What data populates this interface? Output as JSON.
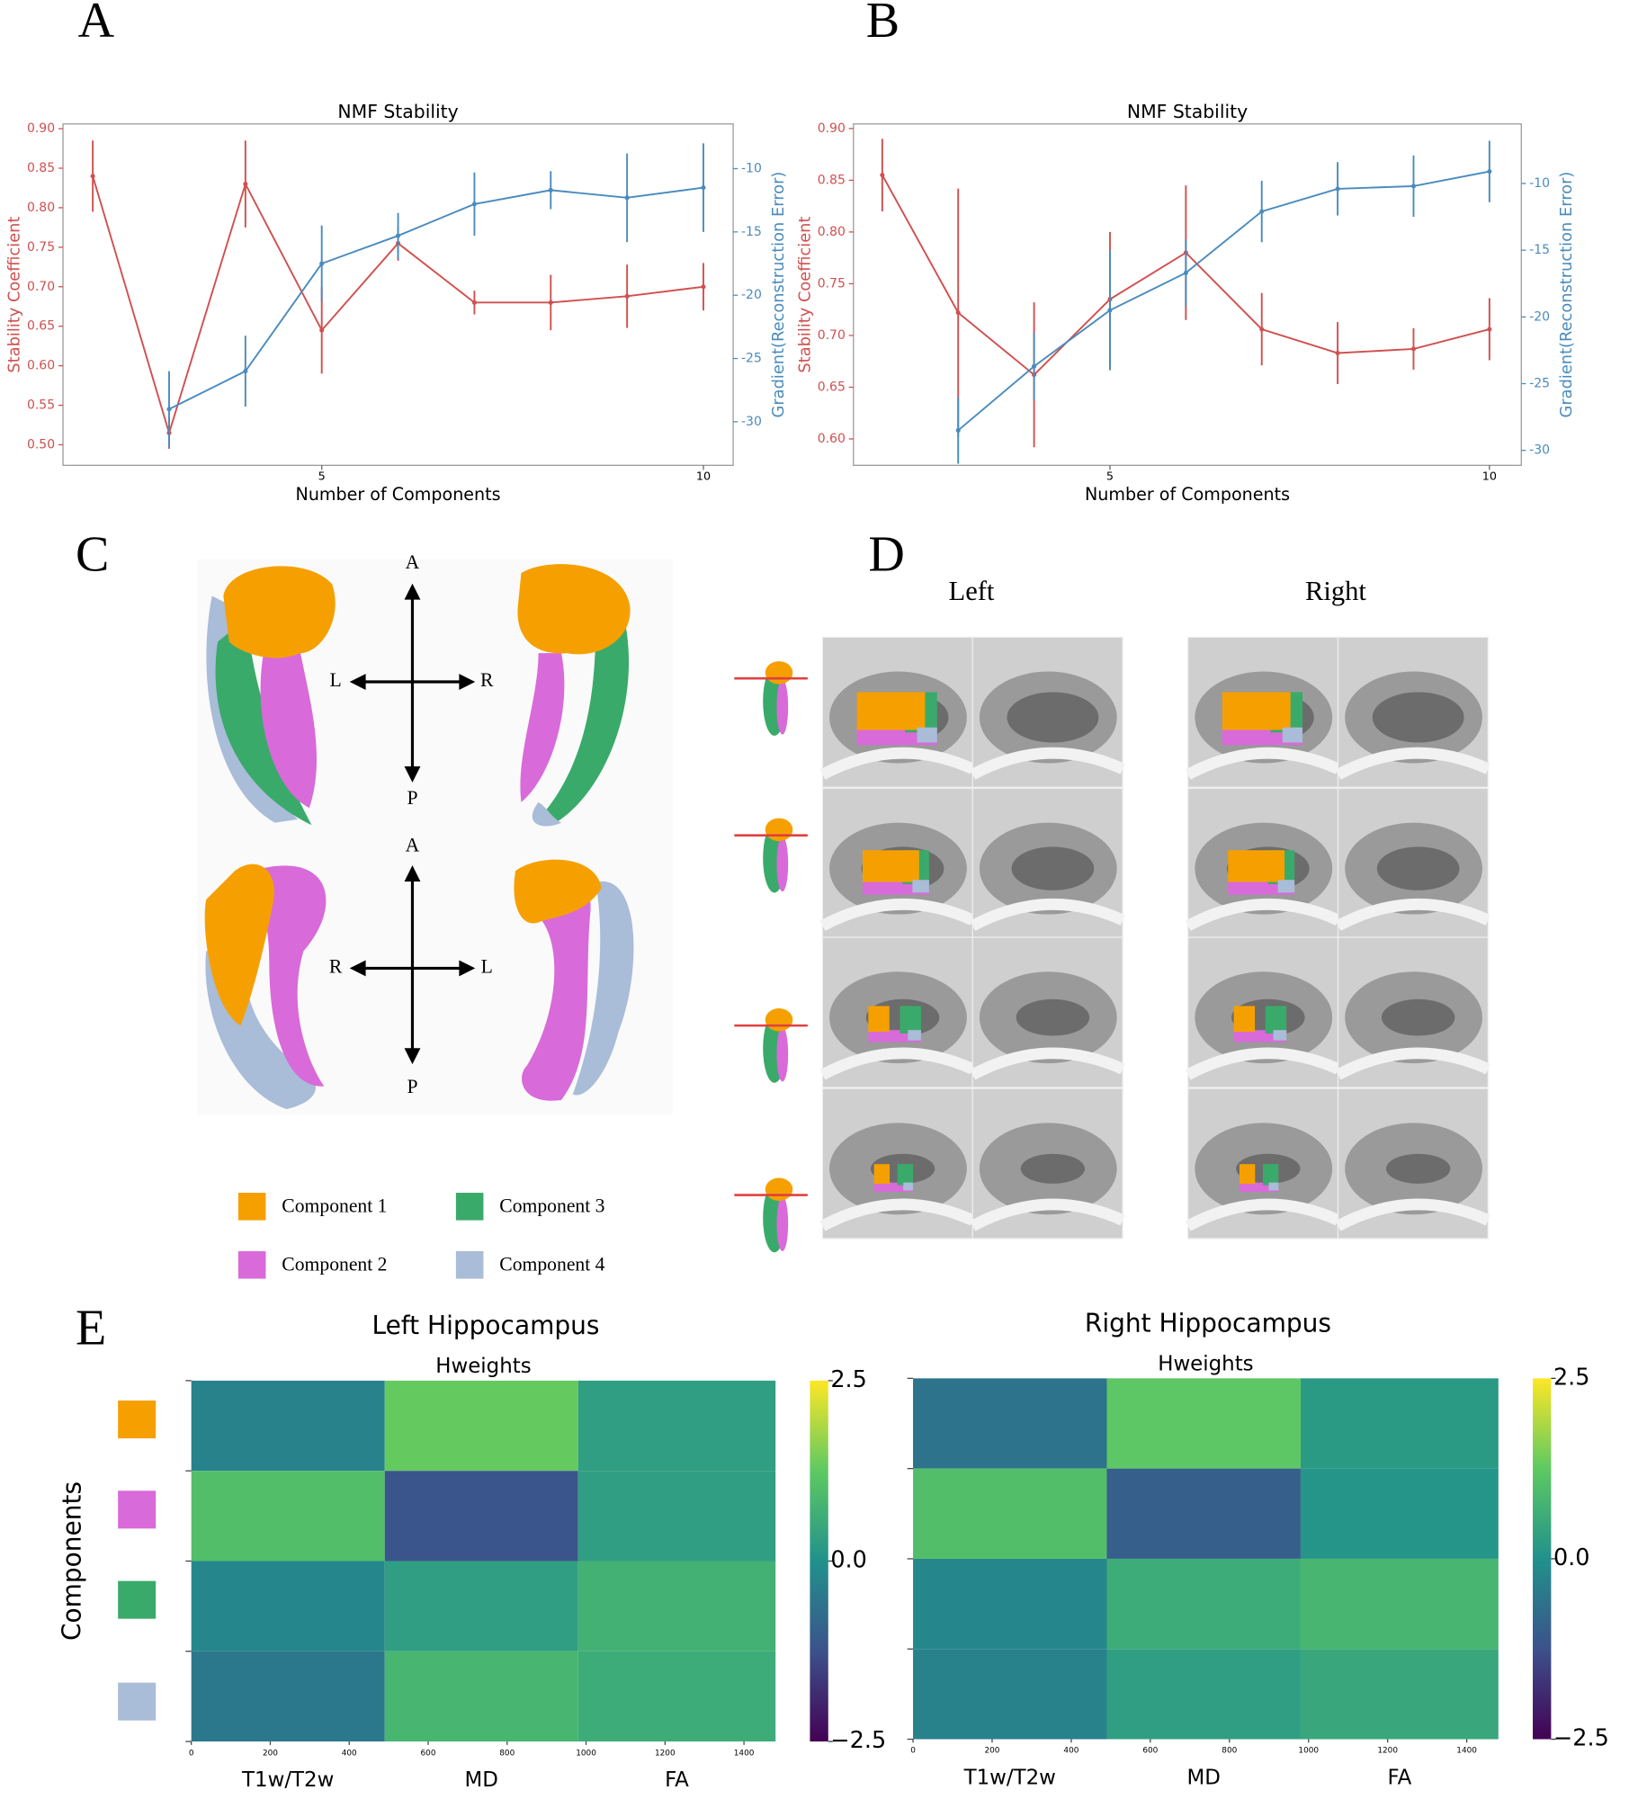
{
  "figure": {
    "panel_labels": [
      "A",
      "B",
      "C",
      "D",
      "E"
    ],
    "panel_c": {
      "directions_top": [
        "A",
        "L",
        "R",
        "P"
      ],
      "directions_bottom": [
        "A",
        "R",
        "L",
        "P"
      ],
      "legend": [
        {
          "label": "Component 1",
          "color": "#f5a000"
        },
        {
          "label": "Component 2",
          "color": "#d96ad9"
        },
        {
          "label": "Component 3",
          "color": "#3aaa6a"
        },
        {
          "label": "Component 4",
          "color": "#a9bcd8"
        }
      ]
    },
    "panel_d": {
      "columns": [
        "Left",
        "Right"
      ]
    }
  },
  "chart_data": [
    {
      "type": "line",
      "title": "NMF Stability",
      "xlabel": "Number of Components",
      "ylabel": "Stability Coefficient",
      "y2label": "Gradient(Reconstruction Error)",
      "xlim": [
        1.61,
        10.39
      ],
      "xticks": [
        5,
        10
      ],
      "ylim": [
        0.474,
        0.906
      ],
      "yticks": [
        {
          "value": 0.5,
          "label": "0.50"
        },
        0.55,
        {
          "value": 0.6,
          "label": "0.60"
        },
        0.65,
        {
          "value": 0.7,
          "label": "0.70"
        },
        0.75,
        {
          "value": 0.8,
          "label": "0.80"
        },
        0.85,
        {
          "value": 0.9,
          "label": "0.90"
        }
      ],
      "y2lim": [
        -33.44,
        -6.47
      ],
      "y2ticks": [
        -30,
        -25,
        -20,
        -15,
        -10
      ],
      "series": [
        {
          "color": "#d0504f",
          "axis": "y",
          "x": [
            2,
            3,
            4,
            5,
            6,
            7,
            8,
            9,
            10
          ],
          "values": [
            0.84,
            0.515,
            0.83,
            0.645,
            0.755,
            0.68,
            0.68,
            0.688,
            0.7
          ],
          "errors": [
            0.045,
            0.02,
            0.055,
            0.055,
            0.022,
            0.015,
            0.035,
            0.04,
            0.03
          ]
        },
        {
          "color": "#4a8bbd",
          "axis": "y2",
          "x": [
            3,
            4,
            5,
            6,
            7,
            8,
            9,
            10
          ],
          "values": [
            -29,
            -26,
            -17.5,
            -15.3,
            -12.8,
            -11.7,
            -12.3,
            -11.5
          ],
          "errors": [
            3,
            2.8,
            3,
            1.8,
            2.5,
            1.5,
            3.5,
            3.5
          ]
        }
      ]
    },
    {
      "type": "line",
      "title": "NMF Stability",
      "xlabel": "Number of Components",
      "ylabel": "Stability Coefficient",
      "y2label": "Gradient(Reconstruction Error)",
      "xlim": [
        1.62,
        10.42
      ],
      "xticks": [
        5,
        10
      ],
      "ylim": [
        0.5745,
        0.9044
      ],
      "yticks": [
        {
          "value": 0.6,
          "label": "0.60"
        },
        0.65,
        {
          "value": 0.7,
          "label": "0.70"
        },
        0.75,
        {
          "value": 0.8,
          "label": "0.80"
        },
        0.85,
        {
          "value": 0.9,
          "label": "0.90"
        }
      ],
      "y2lim": [
        -31.12,
        -5.54
      ],
      "y2ticks": [
        -30,
        -25,
        -20,
        -15,
        -10
      ],
      "series": [
        {
          "color": "#d0504f",
          "axis": "y",
          "x": [
            2,
            3,
            4,
            5,
            6,
            7,
            8,
            9,
            10
          ],
          "values": [
            0.855,
            0.722,
            0.662,
            0.735,
            0.78,
            0.706,
            0.683,
            0.687,
            0.706
          ],
          "errors": [
            0.035,
            0.12,
            0.07,
            0.065,
            0.065,
            0.035,
            0.03,
            0.02,
            0.03
          ]
        },
        {
          "color": "#4a8bbd",
          "axis": "y2",
          "x": [
            3,
            4,
            5,
            6,
            7,
            8,
            9,
            10
          ],
          "values": [
            -28.5,
            -23.7,
            -19.5,
            -16.7,
            -12.1,
            -10.4,
            -10.2,
            -9.1
          ],
          "errors": [
            2.5,
            2.5,
            4.5,
            2.5,
            2.3,
            2,
            2.3,
            2.3
          ]
        }
      ]
    },
    {
      "type": "heatmap",
      "title": "Left Hippocampus",
      "subtitle": "Hweights",
      "ylabel": "Components",
      "x_labels": [
        "T1w/T2w",
        "MD",
        "FA"
      ],
      "x_edges": [
        0,
        490,
        980,
        1480
      ],
      "xlim": [
        0,
        1480
      ],
      "xticks": [
        0,
        200,
        400,
        600,
        800,
        1000,
        1200,
        1400
      ],
      "row_colors": [
        "#f5a000",
        "#d96ad9",
        "#3aaa6a",
        "#a9bcd8"
      ],
      "values": [
        [
          -0.3,
          1.3,
          0.3
        ],
        [
          1.0,
          -1.2,
          0.3
        ],
        [
          -0.2,
          0.3,
          0.7
        ],
        [
          -0.5,
          0.8,
          0.6
        ]
      ],
      "clim": [
        -2.5,
        2.5
      ],
      "cticks": [
        {
          "value": -2.5,
          "label": "−2.5"
        },
        {
          "value": 0,
          "label": "0.0"
        },
        2.5
      ]
    },
    {
      "type": "heatmap",
      "title": "Right Hippocampus",
      "subtitle": "Hweights",
      "x_labels": [
        "T1w/T2w",
        "MD",
        "FA"
      ],
      "x_edges": [
        0,
        490,
        980,
        1480
      ],
      "xlim": [
        0,
        1480
      ],
      "xticks": [
        0,
        200,
        400,
        600,
        800,
        1000,
        1200,
        1400
      ],
      "values": [
        [
          -0.6,
          1.2,
          0.2
        ],
        [
          1.0,
          -1.0,
          0.1
        ],
        [
          -0.2,
          0.6,
          0.8
        ],
        [
          -0.3,
          0.3,
          0.5
        ]
      ],
      "clim": [
        -2.5,
        2.5
      ],
      "cticks": [
        {
          "value": -2.5,
          "label": "−2.5"
        },
        {
          "value": 0,
          "label": "0.0"
        },
        2.5
      ]
    }
  ]
}
